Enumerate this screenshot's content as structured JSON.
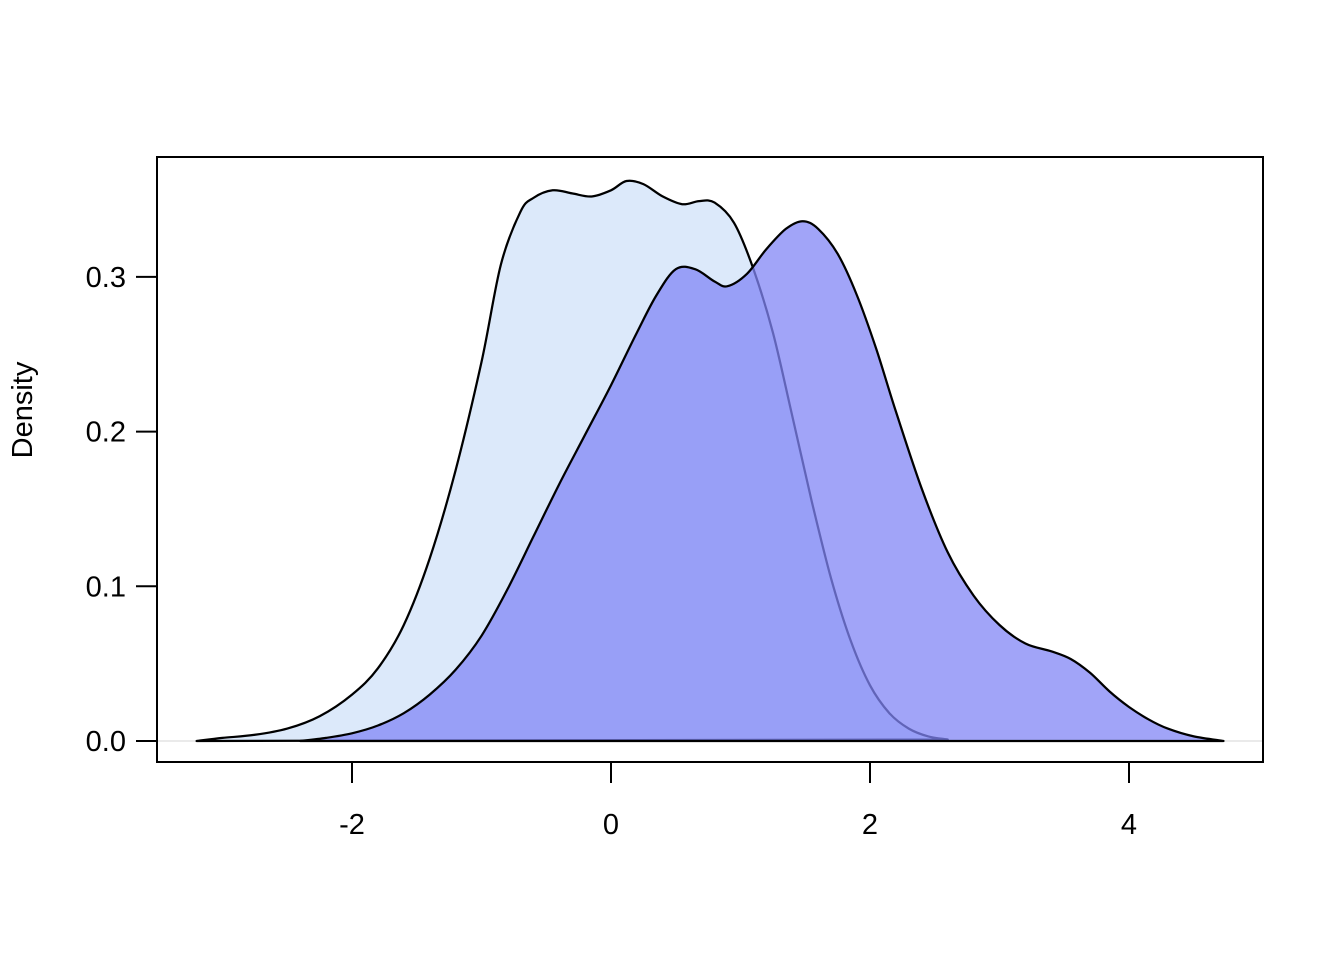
{
  "figure": {
    "background_color": "#ffffff",
    "box_color": "#000000"
  },
  "chart_data": {
    "type": "area",
    "subtype": "overlapping-density-curves",
    "title": "",
    "xlabel": "",
    "ylabel": "Density",
    "grid": false,
    "legend_position": "none",
    "xlim": [
      -3.51,
      5.03
    ],
    "ylim": [
      -0.014,
      0.378
    ],
    "x_ticks": {
      "values": [
        -2,
        0,
        2,
        4
      ],
      "labels": [
        "-2",
        "0",
        "2",
        "4"
      ]
    },
    "y_ticks": {
      "values": [
        0,
        0.1,
        0.2,
        0.3
      ],
      "labels": [
        "0.0",
        "0.1",
        "0.2",
        "0.3"
      ]
    },
    "zero_line_color": "#e3e3e3",
    "series": [
      {
        "name": "density-curve-light-blue",
        "fill": "#dce9fa",
        "fill_opacity": 1,
        "stroke": "#000000",
        "stroke_width": 2.25,
        "points": [
          [
            -3.2,
            0.0
          ],
          [
            -3.0,
            0.002
          ],
          [
            -2.75,
            0.004
          ],
          [
            -2.5,
            0.008
          ],
          [
            -2.25,
            0.016
          ],
          [
            -2.0,
            0.03
          ],
          [
            -1.8,
            0.047
          ],
          [
            -1.6,
            0.075
          ],
          [
            -1.4,
            0.118
          ],
          [
            -1.2,
            0.175
          ],
          [
            -1.0,
            0.245
          ],
          [
            -0.85,
            0.308
          ],
          [
            -0.7,
            0.342
          ],
          [
            -0.6,
            0.351
          ],
          [
            -0.45,
            0.356
          ],
          [
            -0.3,
            0.354
          ],
          [
            -0.15,
            0.352
          ],
          [
            0.0,
            0.356
          ],
          [
            0.12,
            0.362
          ],
          [
            0.25,
            0.36
          ],
          [
            0.4,
            0.352
          ],
          [
            0.55,
            0.347
          ],
          [
            0.68,
            0.349
          ],
          [
            0.8,
            0.348
          ],
          [
            0.95,
            0.335
          ],
          [
            1.1,
            0.305
          ],
          [
            1.25,
            0.264
          ],
          [
            1.4,
            0.21
          ],
          [
            1.55,
            0.155
          ],
          [
            1.7,
            0.105
          ],
          [
            1.85,
            0.065
          ],
          [
            2.0,
            0.036
          ],
          [
            2.15,
            0.018
          ],
          [
            2.3,
            0.008
          ],
          [
            2.45,
            0.003
          ],
          [
            2.6,
            0.001
          ]
        ]
      },
      {
        "name": "density-curve-purple",
        "fill": "#8285f5",
        "fill_opacity": 0.75,
        "stroke": "#000000",
        "stroke_width": 2.25,
        "points": [
          [
            -2.4,
            0.0
          ],
          [
            -2.2,
            0.002
          ],
          [
            -2.0,
            0.005
          ],
          [
            -1.8,
            0.01
          ],
          [
            -1.6,
            0.018
          ],
          [
            -1.4,
            0.03
          ],
          [
            -1.2,
            0.046
          ],
          [
            -1.0,
            0.068
          ],
          [
            -0.8,
            0.098
          ],
          [
            -0.6,
            0.132
          ],
          [
            -0.4,
            0.166
          ],
          [
            -0.2,
            0.198
          ],
          [
            0.0,
            0.23
          ],
          [
            0.2,
            0.264
          ],
          [
            0.35,
            0.288
          ],
          [
            0.5,
            0.305
          ],
          [
            0.65,
            0.305
          ],
          [
            0.8,
            0.297
          ],
          [
            0.9,
            0.294
          ],
          [
            1.05,
            0.302
          ],
          [
            1.2,
            0.318
          ],
          [
            1.35,
            0.331
          ],
          [
            1.48,
            0.336
          ],
          [
            1.6,
            0.331
          ],
          [
            1.75,
            0.315
          ],
          [
            1.9,
            0.288
          ],
          [
            2.05,
            0.253
          ],
          [
            2.2,
            0.213
          ],
          [
            2.4,
            0.163
          ],
          [
            2.6,
            0.122
          ],
          [
            2.8,
            0.094
          ],
          [
            3.0,
            0.075
          ],
          [
            3.2,
            0.063
          ],
          [
            3.4,
            0.058
          ],
          [
            3.55,
            0.053
          ],
          [
            3.7,
            0.044
          ],
          [
            3.85,
            0.032
          ],
          [
            4.0,
            0.022
          ],
          [
            4.15,
            0.014
          ],
          [
            4.3,
            0.008
          ],
          [
            4.5,
            0.003
          ],
          [
            4.73,
            0.0
          ]
        ]
      }
    ]
  }
}
